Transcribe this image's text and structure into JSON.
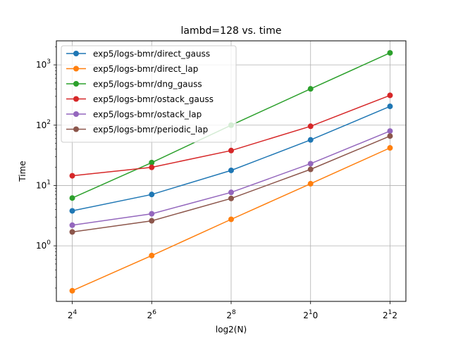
{
  "chart_data": {
    "type": "line",
    "title": "lambd=128 vs. time",
    "xlabel": "log2(N)",
    "ylabel": "Time",
    "x": [
      4,
      6,
      8,
      10,
      12
    ],
    "xticks": [
      {
        "base": "2",
        "exp": "4"
      },
      {
        "base": "2",
        "exp": "6"
      },
      {
        "base": "2",
        "exp": "8"
      },
      {
        "base": "2",
        "exp": "1",
        "tail": "0"
      },
      {
        "base": "2",
        "exp": "1",
        "tail": "2"
      }
    ],
    "yscale": "log",
    "yticks": [
      {
        "base": "10",
        "exp": "0",
        "value": 1
      },
      {
        "base": "10",
        "exp": "1",
        "value": 10
      },
      {
        "base": "10",
        "exp": "2",
        "value": 100
      },
      {
        "base": "10",
        "exp": "3",
        "value": 1000
      }
    ],
    "xlim": [
      3.6,
      12.4
    ],
    "ylim": [
      0.12,
      2500
    ],
    "grid": true,
    "legend_position": "top-left",
    "series": [
      {
        "name": "exp5/logs-bmr/direct_gauss",
        "color": "#1f77b4",
        "values": [
          3.8,
          7.1,
          17.8,
          57,
          205
        ]
      },
      {
        "name": "exp5/logs-bmr/direct_lap",
        "color": "#ff7f0e",
        "values": [
          0.18,
          0.69,
          2.75,
          10.7,
          42
        ]
      },
      {
        "name": "exp5/logs-bmr/dng_gauss",
        "color": "#2ca02c",
        "values": [
          6.2,
          24,
          100,
          400,
          1580
        ]
      },
      {
        "name": "exp5/logs-bmr/ostack_gauss",
        "color": "#d62728",
        "values": [
          14.5,
          20,
          38,
          96,
          312
        ]
      },
      {
        "name": "exp5/logs-bmr/ostack_lap",
        "color": "#9467bd",
        "values": [
          2.2,
          3.4,
          7.7,
          23,
          80
        ]
      },
      {
        "name": "exp5/logs-bmr/periodic_lap",
        "color": "#8c564b",
        "values": [
          1.7,
          2.6,
          6.1,
          18.5,
          66
        ]
      }
    ]
  }
}
